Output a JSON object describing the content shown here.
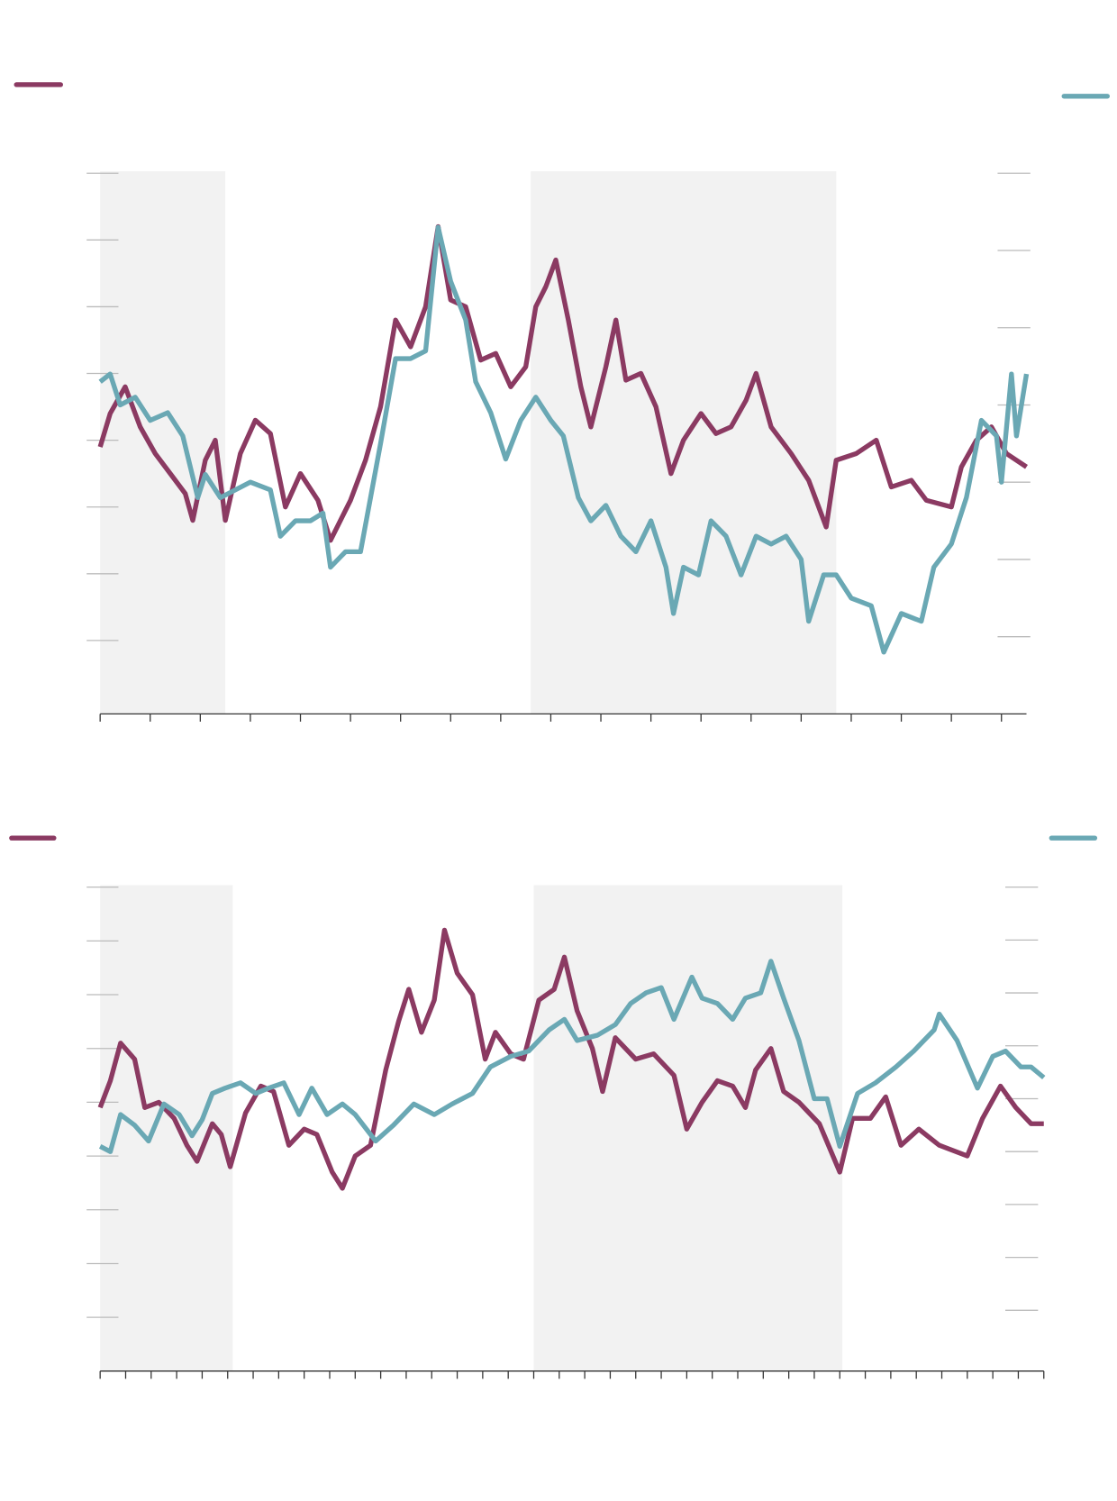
{
  "chart_data": [
    {
      "type": "line",
      "xlim": [
        0,
        18.5
      ],
      "xticks": [
        0,
        1,
        2,
        3,
        4,
        5,
        6,
        7,
        8,
        9,
        10,
        11,
        12,
        13,
        14,
        15,
        16,
        17,
        18
      ],
      "ylim": [
        -1.1,
        7
      ],
      "yticks": [
        0,
        1,
        2,
        3,
        4,
        5,
        6,
        7
      ],
      "y2lim": [
        -1,
        6
      ],
      "y2ticks": [
        0,
        1,
        2,
        3,
        4,
        5,
        6
      ],
      "shaded": [
        [
          0,
          2.5
        ],
        [
          8.6,
          14.7
        ]
      ],
      "series": [
        {
          "color": "#8b3a62",
          "x": [
            0,
            0.2,
            0.5,
            0.8,
            1.1,
            1.4,
            1.7,
            1.85,
            2.1,
            2.3,
            2.5,
            2.8,
            3.1,
            3.4,
            3.7,
            4.0,
            4.35,
            4.6,
            5.0,
            5.3,
            5.6,
            5.9,
            6.2,
            6.5,
            6.75,
            7.0,
            7.3,
            7.6,
            7.9,
            8.2,
            8.5,
            8.7,
            8.9,
            9.1,
            9.35,
            9.6,
            9.8,
            10.1,
            10.3,
            10.5,
            10.8,
            11.1,
            11.4,
            11.65,
            12.0,
            12.3,
            12.6,
            12.9,
            13.1,
            13.4,
            13.8,
            14.15,
            14.5,
            14.7,
            15.1,
            15.5,
            15.8,
            16.2,
            16.5,
            17.0,
            17.2,
            17.5,
            17.8,
            18.1,
            18.5
          ],
          "values": [
            2.9,
            3.4,
            3.8,
            3.2,
            2.8,
            2.5,
            2.2,
            1.8,
            2.7,
            3.0,
            1.8,
            2.8,
            3.3,
            3.1,
            2.0,
            2.5,
            2.1,
            1.5,
            2.1,
            2.7,
            3.5,
            4.8,
            4.4,
            5.0,
            6.2,
            5.1,
            5.0,
            4.2,
            4.3,
            3.8,
            4.1,
            5.0,
            5.3,
            5.7,
            4.8,
            3.8,
            3.2,
            4.1,
            4.8,
            3.9,
            4.0,
            3.5,
            2.5,
            3.0,
            3.4,
            3.1,
            3.2,
            3.6,
            4.0,
            3.2,
            2.8,
            2.4,
            1.7,
            2.7,
            2.8,
            3.0,
            2.3,
            2.4,
            2.1,
            2.0,
            2.6,
            3.0,
            3.2,
            2.8,
            2.6
          ]
        },
        {
          "color": "#6aa8b4",
          "axis": "y2",
          "x": [
            0,
            0.2,
            0.4,
            0.7,
            1.0,
            1.35,
            1.65,
            1.95,
            2.1,
            2.4,
            2.7,
            3.0,
            3.4,
            3.6,
            3.9,
            4.2,
            4.45,
            4.6,
            4.9,
            5.2,
            5.4,
            5.6,
            5.9,
            6.2,
            6.5,
            6.75,
            7.0,
            7.3,
            7.5,
            7.8,
            8.1,
            8.4,
            8.7,
            9.0,
            9.25,
            9.55,
            9.8,
            10.1,
            10.4,
            10.7,
            11.0,
            11.3,
            11.45,
            11.65,
            11.95,
            12.2,
            12.5,
            12.8,
            13.1,
            13.4,
            13.7,
            14.0,
            14.15,
            14.45,
            14.7,
            15.0,
            15.4,
            15.65,
            16.0,
            16.4,
            16.65,
            17.0,
            17.3,
            17.6,
            17.9,
            18.0,
            18.2,
            18.3,
            18.5
          ],
          "values": [
            3.3,
            3.4,
            3.0,
            3.1,
            2.8,
            2.9,
            2.6,
            1.8,
            2.1,
            1.8,
            1.9,
            2.0,
            1.9,
            1.3,
            1.5,
            1.5,
            1.6,
            0.9,
            1.1,
            1.1,
            1.8,
            2.5,
            3.6,
            3.6,
            3.7,
            5.3,
            4.6,
            4.1,
            3.3,
            2.9,
            2.3,
            2.8,
            3.1,
            2.8,
            2.6,
            1.8,
            1.5,
            1.7,
            1.3,
            1.1,
            1.5,
            0.9,
            0.3,
            0.9,
            0.8,
            1.5,
            1.3,
            0.8,
            1.3,
            1.2,
            1.3,
            1.0,
            0.2,
            0.8,
            0.8,
            0.5,
            0.4,
            -0.2,
            0.3,
            0.2,
            0.9,
            1.2,
            1.8,
            2.8,
            2.6,
            2.0,
            3.4,
            2.6,
            3.4
          ]
        }
      ]
    },
    {
      "type": "line",
      "xlim": [
        0,
        37
      ],
      "xticks": [
        0,
        1,
        2,
        3,
        4,
        5,
        6,
        7,
        8,
        9,
        10,
        11,
        12,
        13,
        14,
        15,
        16,
        17,
        18,
        19,
        20,
        21,
        22,
        23,
        24,
        25,
        26,
        27,
        28,
        29,
        30,
        31,
        32,
        33,
        34,
        35,
        36,
        37
      ],
      "ylim": [
        -1,
        8
      ],
      "yticks": [
        0,
        1,
        2,
        3,
        4,
        5,
        6,
        7,
        8
      ],
      "y2lim": [
        -1.15,
        8
      ],
      "y2ticks": [
        0,
        1,
        2,
        3,
        4,
        5,
        6,
        7,
        8
      ],
      "shaded": [
        [
          0,
          5.2
        ],
        [
          17.0,
          29.1
        ]
      ],
      "series": [
        {
          "color": "#8b3a62",
          "x": [
            0,
            0.4,
            0.8,
            1.35,
            1.75,
            2.3,
            2.9,
            3.4,
            3.8,
            4.4,
            4.75,
            5.1,
            5.7,
            6.3,
            6.8,
            7.4,
            8.0,
            8.5,
            9.1,
            9.5,
            10.0,
            10.6,
            11.2,
            11.7,
            12.1,
            12.6,
            13.1,
            13.5,
            14.0,
            14.6,
            15.1,
            15.5,
            16.1,
            16.6,
            17.2,
            17.8,
            18.2,
            18.7,
            19.3,
            19.7,
            20.2,
            21.0,
            21.7,
            22.5,
            23.0,
            23.6,
            24.2,
            24.8,
            25.3,
            25.7,
            26.3,
            26.8,
            27.4,
            28.2,
            29.0,
            29.5,
            30.2,
            30.8,
            31.4,
            32.1,
            32.9,
            34.0,
            34.6,
            35.3,
            35.9,
            36.5,
            37.0
          ],
          "values": [
            3.9,
            4.4,
            5.1,
            4.8,
            3.9,
            4.0,
            3.7,
            3.2,
            2.9,
            3.6,
            3.4,
            2.8,
            3.8,
            4.3,
            4.2,
            3.2,
            3.5,
            3.4,
            2.7,
            2.4,
            3.0,
            3.2,
            4.6,
            5.5,
            6.1,
            5.3,
            5.9,
            7.2,
            6.4,
            6.0,
            4.8,
            5.3,
            4.9,
            4.8,
            5.9,
            6.1,
            6.7,
            5.7,
            5.0,
            4.2,
            5.2,
            4.8,
            4.9,
            4.5,
            3.5,
            4.0,
            4.4,
            4.3,
            3.9,
            4.6,
            5.0,
            4.2,
            4.0,
            3.6,
            2.7,
            3.7,
            3.7,
            4.1,
            3.2,
            3.5,
            3.2,
            3.0,
            3.7,
            4.3,
            3.9,
            3.6,
            3.6
          ]
        },
        {
          "color": "#6aa8b4",
          "axis": "y2",
          "x": [
            0,
            0.4,
            0.8,
            1.35,
            1.9,
            2.5,
            3.1,
            3.6,
            4.0,
            4.4,
            4.9,
            5.5,
            6.1,
            6.6,
            7.2,
            7.8,
            8.3,
            8.9,
            9.5,
            10.0,
            10.8,
            11.5,
            12.3,
            13.1,
            13.8,
            14.6,
            15.3,
            16.1,
            16.8,
            17.6,
            18.2,
            18.7,
            19.5,
            20.2,
            20.8,
            21.4,
            22.0,
            22.5,
            23.2,
            23.6,
            24.2,
            24.8,
            25.3,
            25.9,
            26.3,
            26.8,
            27.4,
            28.0,
            28.5,
            29.0,
            29.7,
            30.4,
            31.2,
            31.9,
            32.7,
            32.9,
            33.6,
            34.4,
            35.0,
            35.5,
            36.1,
            36.5,
            37.0
          ],
          "values": [
            3.1,
            3.0,
            3.7,
            3.5,
            3.2,
            3.9,
            3.7,
            3.3,
            3.6,
            4.1,
            4.2,
            4.3,
            4.1,
            4.2,
            4.3,
            3.7,
            4.2,
            3.7,
            3.9,
            3.7,
            3.2,
            3.5,
            3.9,
            3.7,
            3.9,
            4.1,
            4.6,
            4.8,
            4.9,
            5.3,
            5.5,
            5.1,
            5.2,
            5.4,
            5.8,
            6.0,
            6.1,
            5.5,
            6.3,
            5.9,
            5.8,
            5.5,
            5.9,
            6.0,
            6.6,
            5.9,
            5.1,
            4.0,
            4.0,
            3.1,
            4.1,
            4.3,
            4.6,
            4.9,
            5.3,
            5.6,
            5.1,
            4.2,
            4.8,
            4.9,
            4.6,
            4.6,
            4.4
          ]
        }
      ]
    }
  ]
}
